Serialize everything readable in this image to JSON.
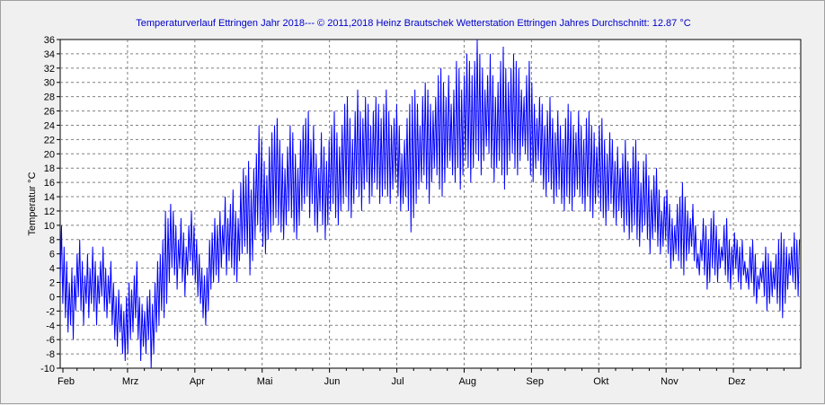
{
  "chart_data": {
    "type": "line",
    "title": "Temperaturverlauf Ettringen Jahr 2018--- © 2011,2018 Heinz Brautschek Wetterstation Ettringen Jahres Durchschnitt: 12.87 °C",
    "xlabel": "",
    "ylabel": "Temperatur °C",
    "ylim": [
      -10,
      36
    ],
    "y_ticks": [
      -10,
      -8,
      -6,
      -4,
      -2,
      0,
      2,
      4,
      6,
      8,
      10,
      12,
      14,
      16,
      18,
      20,
      22,
      24,
      26,
      28,
      30,
      32,
      34,
      36
    ],
    "x_ticks": [
      "Feb",
      "Mrz",
      "Apr",
      "Mai",
      "Jun",
      "Jul",
      "Aug",
      "Sep",
      "Okt",
      "Nov",
      "Dez"
    ],
    "grid": true,
    "line_color": "#0000ff",
    "series": [
      {
        "daily_min": [
          2,
          -1,
          -3,
          -5,
          -4,
          -6,
          -2,
          0,
          -2,
          -4,
          -1,
          -3,
          -1,
          -2,
          -4,
          -1,
          0,
          -2,
          -3,
          -1,
          -4,
          -6,
          -7,
          -5,
          -8,
          -9,
          -8,
          -6,
          -5,
          -3,
          -6,
          -9,
          -7,
          -8,
          -6,
          -10,
          -8,
          -5,
          -4,
          -2,
          -3,
          -1,
          2,
          4,
          3,
          1,
          4,
          2,
          0,
          3,
          5,
          3,
          2,
          0,
          -1,
          -3,
          -4,
          -2,
          1,
          2,
          3,
          2,
          4,
          6,
          3,
          5,
          4,
          3,
          2,
          5,
          6,
          7,
          6,
          3,
          5,
          8,
          10,
          9,
          7,
          6,
          8,
          9,
          10,
          11,
          10,
          9,
          8,
          10,
          12,
          11,
          9,
          8,
          10,
          12,
          13,
          14,
          11,
          13,
          10,
          9,
          12,
          10,
          8,
          10,
          12,
          13,
          11,
          10,
          12,
          13,
          14,
          12,
          11,
          13,
          15,
          14,
          12,
          15,
          16,
          13,
          14,
          16,
          15,
          13,
          14,
          15,
          14,
          13,
          15,
          16,
          14,
          12,
          13,
          14,
          12,
          9,
          11,
          13,
          15,
          16,
          17,
          15,
          13,
          16,
          18,
          17,
          15,
          14,
          16,
          18,
          19,
          17,
          16,
          18,
          15,
          17,
          19,
          18,
          16,
          18,
          20,
          19,
          17,
          19,
          21,
          20,
          18,
          16,
          18,
          19,
          17,
          15,
          17,
          19,
          20,
          18,
          17,
          19,
          21,
          20,
          19,
          17,
          16,
          18,
          19,
          17,
          15,
          14,
          16,
          15,
          13,
          14,
          15,
          13,
          12,
          14,
          13,
          12,
          14,
          15,
          14,
          13,
          12,
          14,
          12,
          11,
          13,
          14,
          12,
          11,
          10,
          12,
          13,
          11,
          10,
          12,
          11,
          9,
          10,
          8,
          9,
          10,
          8,
          7,
          9,
          10,
          8,
          6,
          8,
          9,
          7,
          6,
          7,
          8,
          6,
          4,
          5,
          6,
          5,
          4,
          3,
          5,
          6,
          7,
          5,
          4,
          3,
          5,
          3,
          1,
          2,
          4,
          3,
          2,
          4,
          5,
          3,
          2,
          1,
          3,
          4,
          2,
          1,
          3,
          2,
          1,
          2,
          0,
          -1,
          1,
          2,
          0,
          -2,
          -1,
          0,
          1,
          -1,
          -2,
          -3,
          -1,
          1,
          3,
          2,
          1,
          0,
          2,
          4,
          3,
          2
        ],
        "daily_max": [
          10,
          7,
          5,
          2,
          4,
          3,
          6,
          8,
          5,
          3,
          6,
          4,
          7,
          5,
          3,
          5,
          7,
          4,
          3,
          5,
          2,
          0,
          1,
          -1,
          -2,
          0,
          2,
          1,
          3,
          5,
          0,
          -1,
          -2,
          0,
          1,
          -1,
          2,
          5,
          6,
          8,
          12,
          11,
          13,
          12,
          10,
          8,
          11,
          9,
          7,
          10,
          12,
          10,
          8,
          6,
          4,
          3,
          4,
          8,
          9,
          11,
          10,
          12,
          10,
          14,
          11,
          13,
          15,
          12,
          11,
          16,
          18,
          17,
          19,
          15,
          18,
          20,
          24,
          22,
          19,
          17,
          21,
          23,
          24,
          25,
          22,
          20,
          18,
          21,
          24,
          23,
          20,
          18,
          22,
          24,
          25,
          26,
          22,
          24,
          20,
          18,
          23,
          21,
          19,
          22,
          24,
          26,
          23,
          21,
          24,
          27,
          28,
          25,
          22,
          26,
          29,
          26,
          25,
          28,
          27,
          24,
          26,
          28,
          27,
          25,
          27,
          29,
          26,
          24,
          25,
          27,
          24,
          20,
          22,
          25,
          27,
          28,
          29,
          27,
          24,
          28,
          30,
          29,
          27,
          26,
          28,
          31,
          32,
          30,
          28,
          31,
          27,
          29,
          33,
          32,
          29,
          31,
          34,
          33,
          31,
          33,
          36,
          34,
          32,
          29,
          31,
          34,
          31,
          28,
          30,
          33,
          35,
          32,
          30,
          32,
          34,
          33,
          32,
          29,
          28,
          31,
          33,
          30,
          27,
          25,
          28,
          27,
          24,
          26,
          28,
          25,
          23,
          26,
          24,
          22,
          25,
          27,
          26,
          24,
          23,
          26,
          24,
          22,
          25,
          26,
          24,
          23,
          21,
          24,
          25,
          22,
          20,
          23,
          22,
          19,
          21,
          18,
          20,
          22,
          19,
          18,
          21,
          22,
          19,
          16,
          19,
          20,
          17,
          15,
          17,
          18,
          15,
          12,
          14,
          15,
          13,
          11,
          10,
          13,
          14,
          16,
          14,
          12,
          11,
          13,
          10,
          6,
          8,
          11,
          10,
          8,
          11,
          12,
          10,
          8,
          7,
          10,
          11,
          8,
          7,
          9,
          8,
          7,
          8,
          5,
          4,
          7,
          8,
          6,
          3,
          4,
          5,
          7,
          6,
          5,
          4,
          6,
          8,
          9,
          8,
          7,
          6,
          7,
          9,
          8,
          8
        ]
      }
    ]
  }
}
